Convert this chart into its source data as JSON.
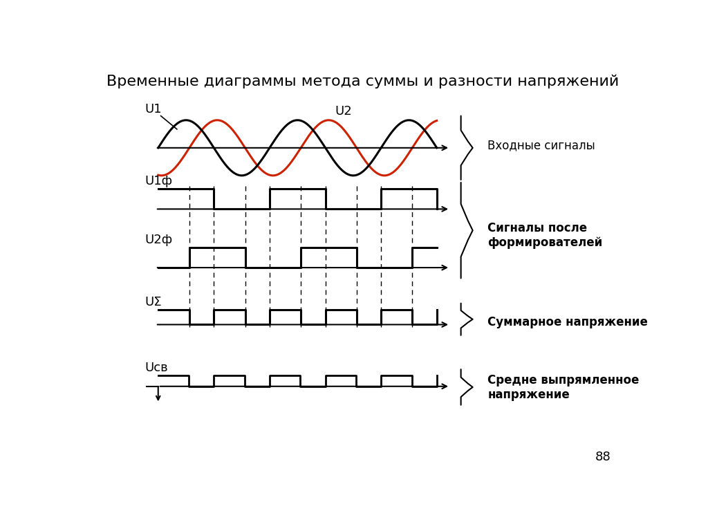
{
  "title": "Временные диаграммы метода суммы и разности напряжений",
  "title_fontsize": 17,
  "label_U1": "U1",
  "label_U2": "U2",
  "label_U1f": "U1ф",
  "label_U2f": "U2ф",
  "label_USigma": "UΣ",
  "label_Usv": "Uсв",
  "annotation1": "Входные сигналы",
  "annotation2": "Сигналы после\nформирователей",
  "annotation3": "Суммарное напряжение",
  "annotation4": "Средне выпрямленное\nнапряжение",
  "page_number": "88",
  "color_black": "#000000",
  "color_red": "#cc2200",
  "color_bg": "#ffffff",
  "sine_phase_shift": 0.28,
  "sine_freq_cycles": 2.5
}
